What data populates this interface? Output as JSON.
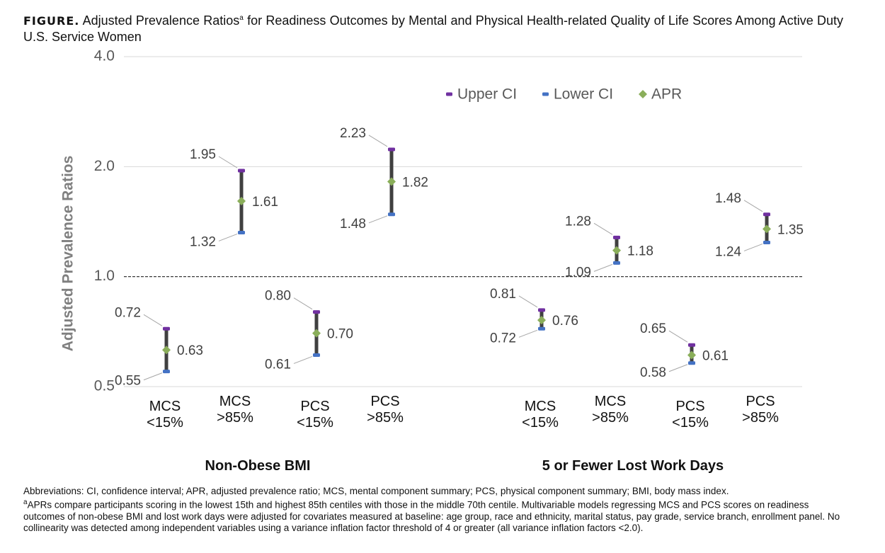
{
  "chart_data": {
    "type": "errorbar",
    "title_prefix": "FIGURE.",
    "title": "Adjusted Prevalence Ratios",
    "title_mark": "a",
    "title_rest": "for Readiness Outcomes by Mental and Physical Health-related Quality of Life Scores Among Active Duty U.S. Service Women",
    "y_label": "Adjusted Prevalence Ratios",
    "log_scale": true,
    "grid": true,
    "reference_line": 1,
    "legend_position": "top-right",
    "groups": [
      {
        "label": "Non-Obese BMI",
        "categories": [
          "MCS\n<15%",
          "MCS\n>85%",
          "PCS\n<15%",
          "PCS\n>85%"
        ]
      },
      {
        "label": "5 or Fewer Lost Work Days",
        "categories": [
          "MCS\n<15%",
          "MCS\n>85%",
          "PCS\n<15%",
          "PCS\n>85%"
        ]
      }
    ],
    "series": [
      {
        "name": "Upper CI",
        "color": "#7030a0",
        "values": [
          0.72,
          1.95,
          0.8,
          2.23,
          0.81,
          1.28,
          0.65,
          1.48
        ],
        "value_labels": [
          "0.72",
          "1.95",
          "0.80",
          "2.23",
          "0.81",
          "1.28",
          "0.65",
          "1.48"
        ]
      },
      {
        "name": "Lower CI",
        "color": "#4472c4",
        "values": [
          0.55,
          1.32,
          0.61,
          1.48,
          0.72,
          1.09,
          0.58,
          1.24
        ],
        "value_labels": [
          "0.55",
          "1.32",
          "0.61",
          "1.48",
          "0.72",
          "1.09",
          "0.58",
          "1.24"
        ]
      },
      {
        "name": "APR",
        "color": "#8aae5a",
        "values": [
          0.63,
          1.61,
          0.7,
          1.82,
          0.76,
          1.18,
          0.61,
          1.35
        ],
        "value_labels": [
          "0.63",
          "1.61",
          "0.70",
          "1.82",
          "0.76",
          "1.18",
          "0.61",
          "1.35"
        ]
      }
    ],
    "ylim": [
      0.5,
      4
    ],
    "yticks": [
      0.5,
      {
        "value": 1,
        "label": "1.0"
      },
      {
        "value": 2,
        "label": "2.0"
      },
      {
        "value": 4,
        "label": "4.0"
      }
    ],
    "footnote_mark": "a",
    "footnotes": [
      "Abbreviations: CI, confidence interval; APR, adjusted prevalence ratio; MCS, mental component summary; PCS, physical component summary; BMI, body mass index.",
      "APRs compare participants scoring in the lowest 15th and highest 85th centiles with those in the middle 70th centile. Multivariable models regressing MCS and PCS scores on readiness outcomes of non-obese BMI and lost work days were adjusted for covariates measured at baseline: age group, race and ethnicity, marital status, pay grade, service branch, enrollment panel. No collinearity was detected among independent variables using a variance inflation factor threshold of 4 or greater (all variance inflation factors <2.0)."
    ]
  }
}
